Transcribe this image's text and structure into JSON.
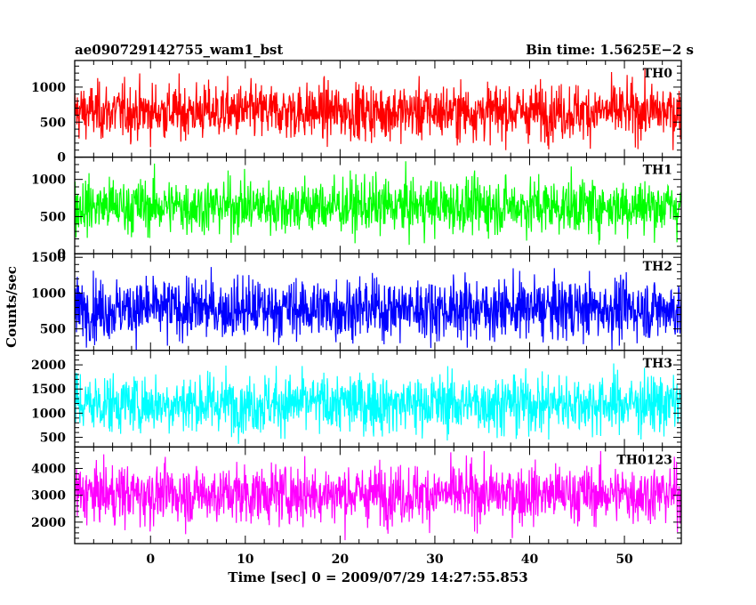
{
  "header": {
    "left_title": "ae090729142755_wam1_bst",
    "right_title": "Bin time: 1.5625E−2 s"
  },
  "chart_data": {
    "type": "line",
    "layout": "stacked-panels-shared-x",
    "xlabel": "Time [sec] 0 = 2009/07/29 14:27:55.853",
    "ylabel": "Counts/sec",
    "xlim": [
      -8,
      56
    ],
    "x_ticks": [
      0,
      10,
      20,
      30,
      40,
      50
    ],
    "x_tick_labels": [
      "0",
      "10",
      "20",
      "30",
      "40",
      "50"
    ],
    "x_start": -8,
    "x_end": 56,
    "bin_time": 0.015625,
    "grid": false,
    "panels": [
      {
        "label": "TH0",
        "color": "#ff0000",
        "ylim": [
          0,
          1380
        ],
        "y_ticks": [
          0,
          500,
          1000
        ],
        "y_tick_labels": [
          "0",
          "500",
          "1000"
        ],
        "series": {
          "mean": 650,
          "min": 100,
          "max": 1320
        }
      },
      {
        "label": "TH1",
        "color": "#00ff00",
        "ylim": [
          0,
          1300
        ],
        "y_ticks": [
          0,
          500,
          1000
        ],
        "y_tick_labels": [
          "0",
          "500",
          "1000"
        ],
        "series": {
          "mean": 640,
          "min": 120,
          "max": 1280
        }
      },
      {
        "label": "TH2",
        "color": "#0000ff",
        "ylim": [
          200,
          1550
        ],
        "y_ticks": [
          500,
          1000,
          1500
        ],
        "y_tick_labels": [
          "500",
          "1000",
          "1500"
        ],
        "series": {
          "mean": 780,
          "min": 210,
          "max": 1520
        }
      },
      {
        "label": "TH3",
        "color": "#00ffff",
        "ylim": [
          300,
          2300
        ],
        "y_ticks": [
          500,
          1000,
          1500,
          2000
        ],
        "y_tick_labels": [
          "500",
          "1000",
          "1500",
          "2000"
        ],
        "series": {
          "mean": 1200,
          "min": 360,
          "max": 2250
        }
      },
      {
        "label": "TH0123",
        "color": "#ff00ff",
        "ylim": [
          1200,
          4800
        ],
        "y_ticks": [
          2000,
          3000,
          4000
        ],
        "y_tick_labels": [
          "2000",
          "3000",
          "4000"
        ],
        "series": {
          "mean": 3050,
          "min": 1300,
          "max": 4650
        }
      }
    ]
  }
}
